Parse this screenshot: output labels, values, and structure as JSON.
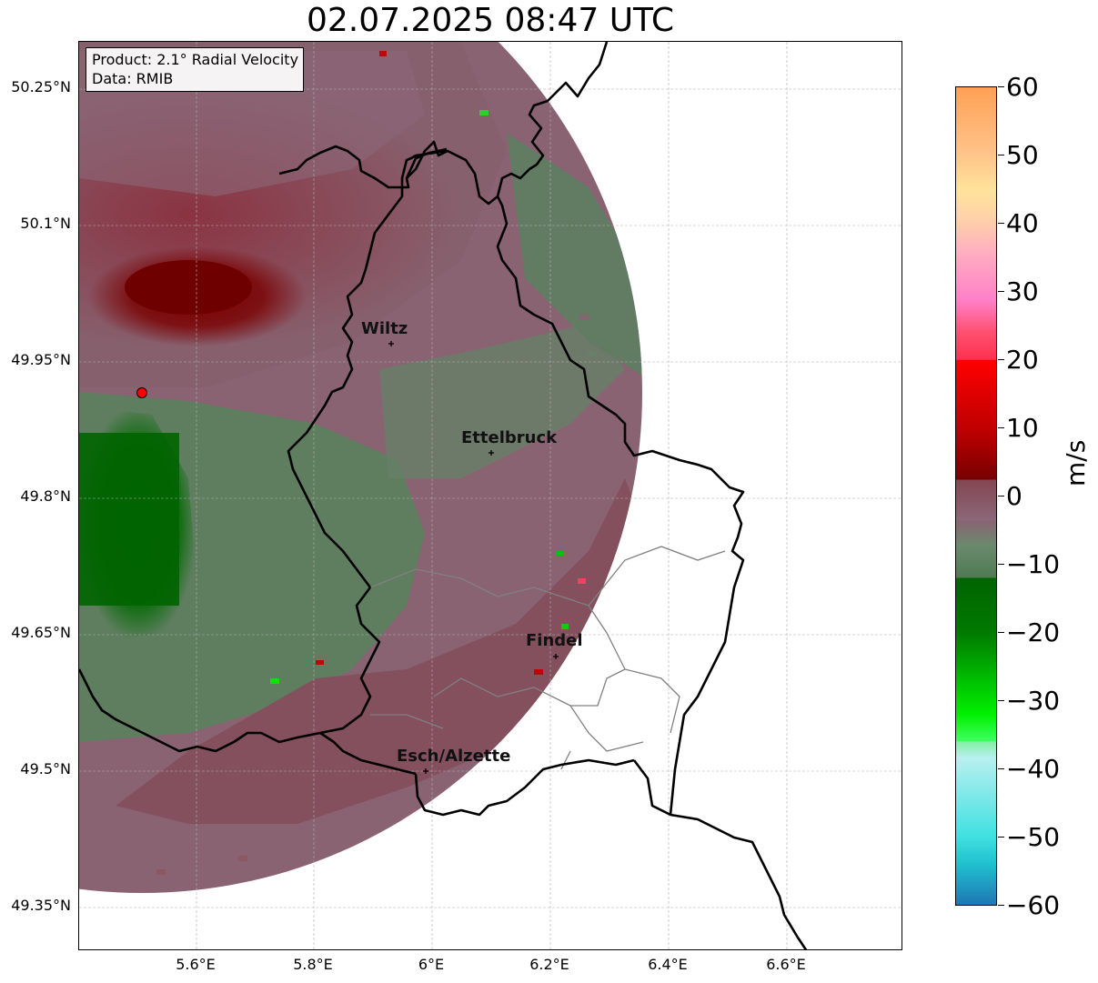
{
  "title": "02.07.2025 08:47 UTC",
  "info_box": {
    "product": "Product: 2.1° Radial Velocity",
    "data": "Data: RMIB"
  },
  "latitude_ticks": [
    "50.25°N",
    "50.1°N",
    "49.95°N",
    "49.8°N",
    "49.65°N",
    "49.5°N",
    "49.35°N"
  ],
  "longitude_ticks": [
    "5.6°E",
    "5.8°E",
    "6°E",
    "6.2°E",
    "6.4°E",
    "6.6°E"
  ],
  "cities": [
    {
      "name": "Wiltz"
    },
    {
      "name": "Ettelbruck"
    },
    {
      "name": "Findel"
    },
    {
      "name": "Esch/Alzette"
    }
  ],
  "colorbar": {
    "label": "m/s",
    "ticks": [
      "60",
      "50",
      "40",
      "30",
      "20",
      "10",
      "0",
      "−10",
      "−20",
      "−30",
      "−40",
      "−50",
      "−60"
    ],
    "range": [
      -60,
      60
    ]
  },
  "colors": {
    "approaching_dark": "#006400",
    "approaching_mid": "#5d7f5d",
    "receding_mid": "#8a6373",
    "receding_dark": "#7a0000",
    "border": "#000000",
    "admin_boundary": "#808080",
    "radar_site": "#ff0000"
  }
}
